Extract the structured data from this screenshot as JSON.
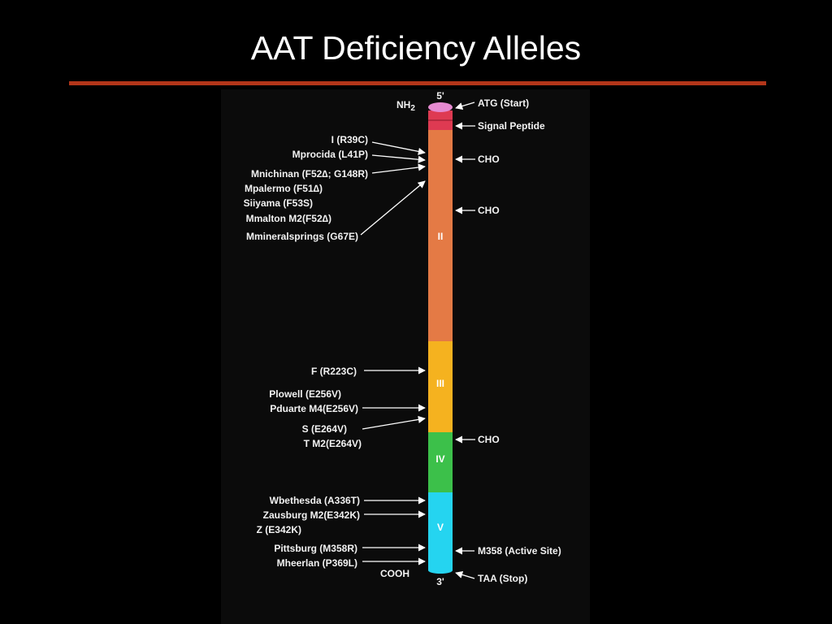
{
  "slide": {
    "title": "AAT Deficiency Alleles",
    "colors": {
      "background": "#000000",
      "rule": "#b3361a",
      "title": "#ffffff"
    }
  },
  "gene": {
    "end_top": "5'",
    "end_bottom": "3'",
    "n_terminus": {
      "base": "NH",
      "sub": "2"
    },
    "c_terminus": "COOH",
    "segments": [
      {
        "label": "",
        "color": "#de3a52"
      },
      {
        "label": "II",
        "color": "#e47a45"
      },
      {
        "label": "III",
        "color": "#f5b21f"
      },
      {
        "label": "IV",
        "color": "#3cc04a"
      },
      {
        "label": "V",
        "color": "#25d4f0"
      }
    ],
    "cap_color": "#e58ad0"
  },
  "right_labels": {
    "atg": "ATG  (Start)",
    "signal": "Signal Peptide",
    "cho1": "CHO",
    "cho2": "CHO",
    "cho3": "CHO",
    "m358": "M358  (Active Site)",
    "taa": "TAA  (Stop)"
  },
  "left_alleles": {
    "i": "I (R39C)",
    "mprocida": "Mprocida (L41P)",
    "mnichinan": "Mnichinan (F52∆; G148R)",
    "mpalermo": "Mpalermo (F51∆)",
    "siiyama": "Siiyama (F53S)",
    "mmalton": "Mmalton M2(F52∆)",
    "mmineralsprings": "Mmineralsprings (G67E)",
    "f": "F (R223C)",
    "plowell": "Plowell (E256V)",
    "pduarte": "Pduarte M4(E256V)",
    "s": "S (E264V)",
    "t": "T M2(E264V)",
    "wbethesda": "Wbethesda (A336T)",
    "zausburg": "Zausburg M2(E342K)",
    "z": "Z (E342K)",
    "pittsburg": "Pittsburg (M358R)",
    "mheerlan": "Mheerlan (P369L)"
  }
}
